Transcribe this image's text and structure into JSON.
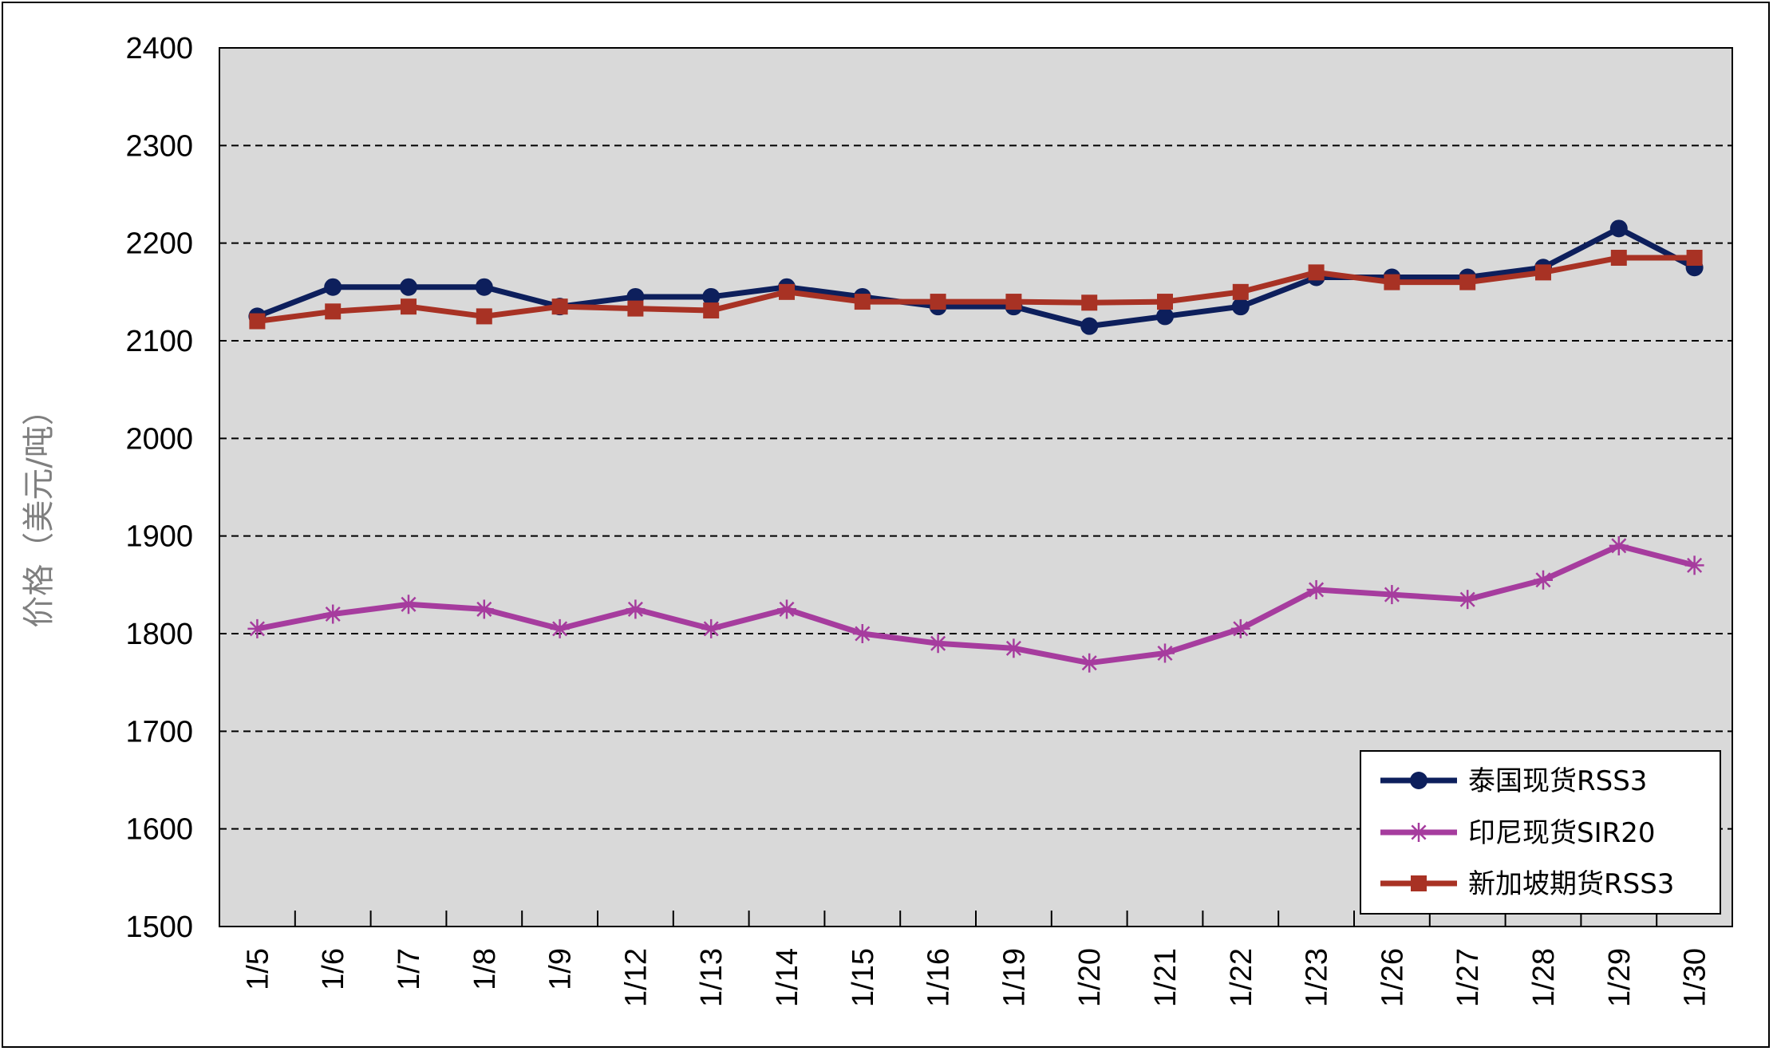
{
  "chart_data": {
    "type": "line",
    "title": "",
    "xlabel": "",
    "ylabel": "价格（美元/吨）",
    "ylim": [
      1500,
      2400
    ],
    "yticks": [
      1500,
      1600,
      1700,
      1800,
      1900,
      2000,
      2100,
      2200,
      2300,
      2400
    ],
    "grid": true,
    "legend_position": "bottom-right",
    "categories": [
      "1/5",
      "1/6",
      "1/7",
      "1/8",
      "1/9",
      "1/12",
      "1/13",
      "1/14",
      "1/15",
      "1/16",
      "1/19",
      "1/20",
      "1/21",
      "1/22",
      "1/23",
      "1/26",
      "1/27",
      "1/28",
      "1/29",
      "1/30"
    ],
    "series": [
      {
        "name": "泰国现货RSS3",
        "color": "#0d1f5c",
        "marker": "circle",
        "values": [
          2125,
          2155,
          2155,
          2155,
          2135,
          2145,
          2145,
          2155,
          2145,
          2135,
          2135,
          2115,
          2125,
          2135,
          2165,
          2165,
          2165,
          2175,
          2215,
          2175
        ]
      },
      {
        "name": "印尼现货SIR20",
        "color": "#a63c9e",
        "marker": "asterisk",
        "values": [
          1805,
          1820,
          1830,
          1825,
          1805,
          1825,
          1805,
          1825,
          1800,
          1790,
          1785,
          1770,
          1780,
          1805,
          1845,
          1840,
          1835,
          1855,
          1890,
          1870
        ]
      },
      {
        "name": "新加坡期货RSS3",
        "color": "#a83224",
        "marker": "square",
        "values": [
          2120,
          2130,
          2135,
          2125,
          2135,
          2133,
          2131,
          2150,
          2140,
          2140,
          2140,
          2139,
          2140,
          2150,
          2170,
          2160,
          2160,
          2170,
          2185,
          2185
        ]
      }
    ]
  }
}
